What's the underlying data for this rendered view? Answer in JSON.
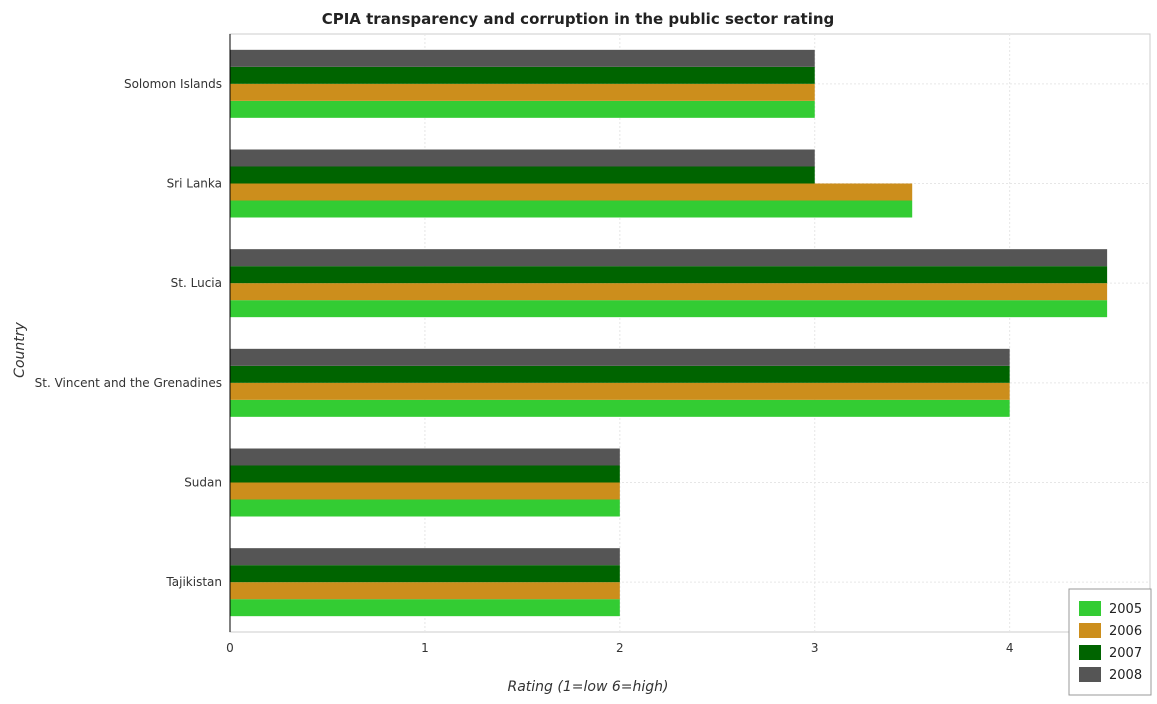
{
  "chart_data": {
    "type": "bar",
    "orientation": "horizontal",
    "title": "CPIA transparency and corruption in the public sector rating",
    "xlabel": "Rating (1=low 6=high)",
    "ylabel": "Country",
    "xlim": [
      0,
      4.72
    ],
    "xticks": [
      0,
      1,
      2,
      3,
      4
    ],
    "grid": true,
    "legend_position": "bottom-right",
    "categories": [
      "Solomon Islands",
      "Sri Lanka",
      "St. Lucia",
      "St. Vincent and the Grenadines",
      "Sudan",
      "Tajikistan"
    ],
    "series": [
      {
        "name": "2005",
        "color": "#33cc33",
        "values": [
          3.0,
          3.5,
          4.5,
          4.0,
          2.0,
          2.0
        ]
      },
      {
        "name": "2006",
        "color": "#cc8e1c",
        "values": [
          3.0,
          3.5,
          4.5,
          4.0,
          2.0,
          2.0
        ]
      },
      {
        "name": "2007",
        "color": "#006400",
        "values": [
          3.0,
          3.0,
          4.5,
          4.0,
          2.0,
          2.0
        ]
      },
      {
        "name": "2008",
        "color": "#555555",
        "values": [
          3.0,
          3.0,
          4.5,
          4.0,
          2.0,
          2.0
        ]
      }
    ]
  }
}
